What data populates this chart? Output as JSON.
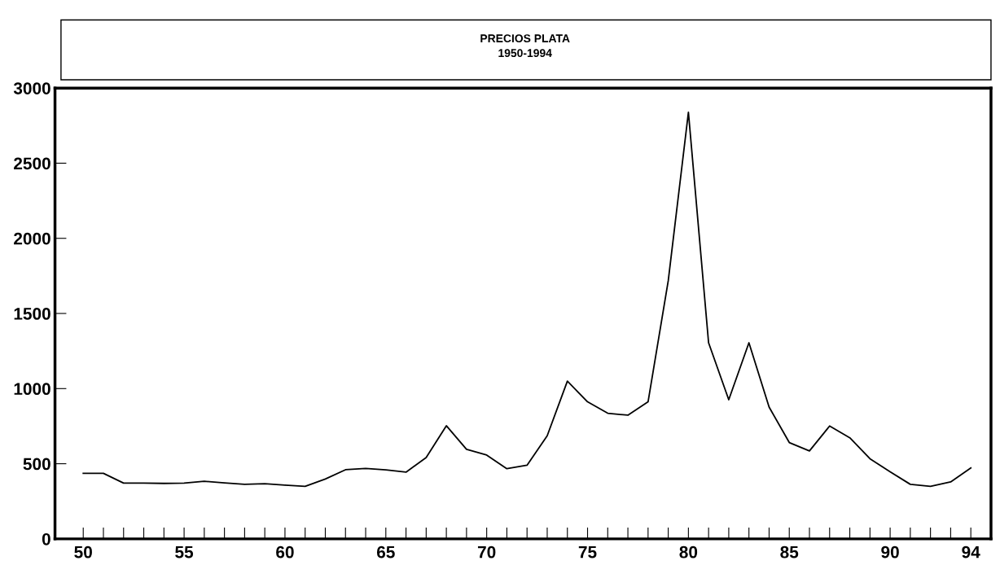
{
  "chart_data": {
    "type": "line",
    "title": "PRECIOS PLATA",
    "subtitle": "1950-1994",
    "x": [
      1950,
      1951,
      1952,
      1953,
      1954,
      1955,
      1956,
      1957,
      1958,
      1959,
      1960,
      1961,
      1962,
      1963,
      1964,
      1965,
      1966,
      1967,
      1968,
      1969,
      1970,
      1971,
      1972,
      1973,
      1974,
      1975,
      1976,
      1977,
      1978,
      1979,
      1980,
      1981,
      1982,
      1983,
      1984,
      1985,
      1986,
      1987,
      1988,
      1989,
      1990,
      1991,
      1992,
      1993,
      1994
    ],
    "series": [
      {
        "color": "#000000",
        "values": [
          436,
          436,
          371,
          371,
          369,
          371,
          383,
          373,
          363,
          367,
          358,
          350,
          398,
          460,
          469,
          459,
          444,
          541,
          753,
          596,
          558,
          467,
          490,
          686,
          1050,
          912,
          836,
          823,
          912,
          1717,
          2839,
          1305,
          926,
          1305,
          877,
          641,
          585,
          751,
          673,
          533,
          446,
          363,
          349,
          379,
          472
        ]
      }
    ],
    "xlim": [
      1948.6,
      1995.0
    ],
    "ylim": [
      0,
      3000
    ],
    "xticks": [
      {
        "value": 1950,
        "label": "50"
      },
      {
        "value": 1951,
        "label": null
      },
      {
        "value": 1952,
        "label": null
      },
      {
        "value": 1953,
        "label": null
      },
      {
        "value": 1954,
        "label": null
      },
      {
        "value": 1955,
        "label": "55"
      },
      {
        "value": 1956,
        "label": null
      },
      {
        "value": 1957,
        "label": null
      },
      {
        "value": 1958,
        "label": null
      },
      {
        "value": 1959,
        "label": null
      },
      {
        "value": 1960,
        "label": "60"
      },
      {
        "value": 1961,
        "label": null
      },
      {
        "value": 1962,
        "label": null
      },
      {
        "value": 1963,
        "label": null
      },
      {
        "value": 1964,
        "label": null
      },
      {
        "value": 1965,
        "label": "65"
      },
      {
        "value": 1966,
        "label": null
      },
      {
        "value": 1967,
        "label": null
      },
      {
        "value": 1968,
        "label": null
      },
      {
        "value": 1969,
        "label": null
      },
      {
        "value": 1970,
        "label": "70"
      },
      {
        "value": 1971,
        "label": null
      },
      {
        "value": 1972,
        "label": null
      },
      {
        "value": 1973,
        "label": null
      },
      {
        "value": 1974,
        "label": null
      },
      {
        "value": 1975,
        "label": "75"
      },
      {
        "value": 1976,
        "label": null
      },
      {
        "value": 1977,
        "label": null
      },
      {
        "value": 1978,
        "label": null
      },
      {
        "value": 1979,
        "label": null
      },
      {
        "value": 1980,
        "label": "80"
      },
      {
        "value": 1981,
        "label": null
      },
      {
        "value": 1982,
        "label": null
      },
      {
        "value": 1983,
        "label": null
      },
      {
        "value": 1984,
        "label": null
      },
      {
        "value": 1985,
        "label": "85"
      },
      {
        "value": 1986,
        "label": null
      },
      {
        "value": 1987,
        "label": null
      },
      {
        "value": 1988,
        "label": null
      },
      {
        "value": 1989,
        "label": null
      },
      {
        "value": 1990,
        "label": "90"
      },
      {
        "value": 1991,
        "label": null
      },
      {
        "value": 1992,
        "label": null
      },
      {
        "value": 1993,
        "label": null
      },
      {
        "value": 1994,
        "label": "94"
      }
    ],
    "yticks": [
      0,
      500,
      1000,
      1500,
      2000,
      2500,
      3000
    ],
    "grid": false,
    "marker": "none",
    "line_style": "solid"
  }
}
